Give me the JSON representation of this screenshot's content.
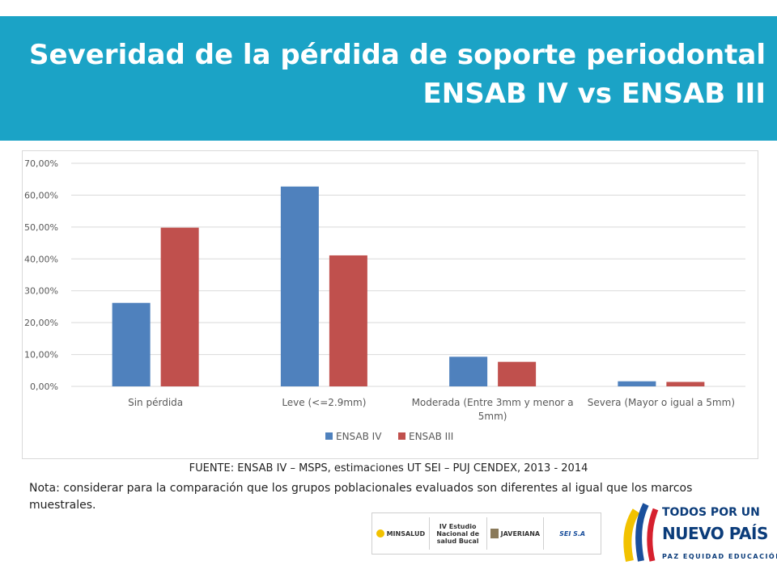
{
  "header": {
    "title_line1": "Severidad de la pérdida de soporte periodontal",
    "title_line2": "ENSAB IV vs ENSAB III"
  },
  "chart_data": {
    "type": "bar",
    "categories": [
      [
        "Sin pérdida"
      ],
      [
        "Leve (<=2.9mm)"
      ],
      [
        "Moderada (Entre 3mm y menor a",
        "5mm)"
      ],
      [
        "Severa (Mayor o igual a 5mm)"
      ]
    ],
    "series": [
      {
        "name": "ENSAB IV",
        "color": "#4f81bd",
        "values": [
          26.2,
          62.7,
          9.3,
          1.6
        ]
      },
      {
        "name": "ENSAB III",
        "color": "#c0504d",
        "values": [
          49.8,
          41.1,
          7.7,
          1.4
        ]
      }
    ],
    "ylim": [
      0,
      70
    ],
    "yticks": [
      "0,00%",
      "10,00%",
      "20,00%",
      "30,00%",
      "40,00%",
      "50,00%",
      "60,00%",
      "70,00%"
    ],
    "ytick_values": [
      0,
      10,
      20,
      30,
      40,
      50,
      60,
      70
    ],
    "grid": true,
    "legend_position": "bottom"
  },
  "footer": {
    "source": "FUENTE: ENSAB IV – MSPS, estimaciones UT SEI – PUJ CENDEX, 2013 - 2014",
    "note": "Nota: considerar para la comparación que los grupos poblacionales evaluados son diferentes al igual que los marcos muestrales."
  },
  "logos": {
    "minsalud": "MINSALUD",
    "estudio": "IV Estudio Nacional de salud Bucal",
    "javeriana": "JAVERIANA",
    "sei": "SEI S.A",
    "gov_line1": "TODOS POR UN",
    "gov_line2": "NUEVO PAÍS",
    "gov_line3": "PAZ EQUIDAD EDUCACIÓN"
  }
}
